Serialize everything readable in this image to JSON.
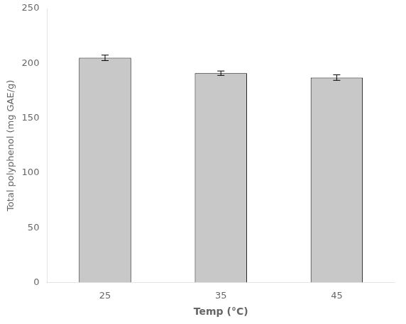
{
  "chart_data": {
    "type": "bar",
    "categories": [
      "25",
      "35",
      "45"
    ],
    "values": [
      205.0,
      191.0,
      187.0
    ],
    "errors": [
      2.5,
      2.0,
      2.5
    ],
    "color": "#c8c8c8",
    "xlabel": "Temp (°C)",
    "ylabel": "Total polyphenol (mg GAE/g)",
    "ylim": [
      0,
      250
    ],
    "yticks": [
      0,
      50,
      100,
      150,
      200,
      250
    ],
    "grid": false
  }
}
